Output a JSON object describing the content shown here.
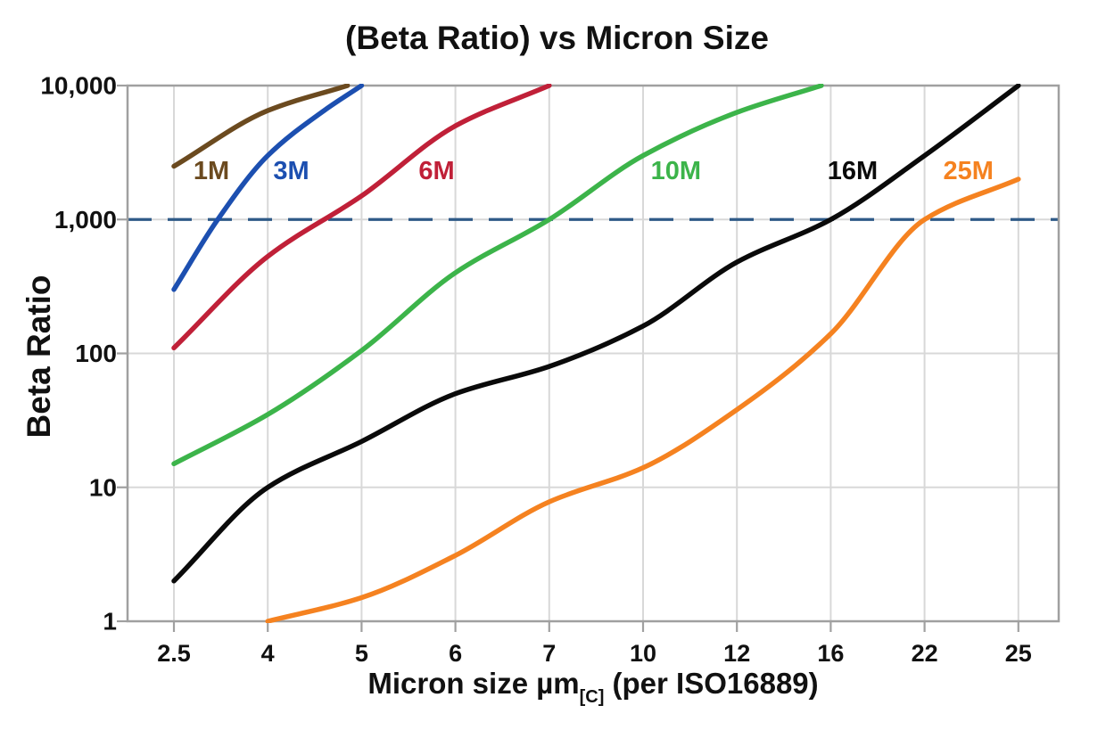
{
  "chart": {
    "title": "(Beta Ratio) vs Micron Size",
    "ylabel": "Beta Ratio",
    "xlabel": {
      "prefix": "Micron size µm",
      "subscript": "[C]",
      "suffix": " (per ISO16889)"
    }
  },
  "chart_data": {
    "type": "line",
    "title": "(Beta Ratio) vs Micron Size",
    "xlabel": "Micron size µm[C] (per ISO16889)",
    "ylabel": "Beta Ratio",
    "x_scale": "even-spaced-ticks",
    "y_scale": "log10",
    "ylim": [
      1,
      10000
    ],
    "grid": true,
    "legend_position": "inline-labels",
    "x_ticks": [
      2.5,
      4,
      5,
      6,
      7,
      10,
      12,
      16,
      22,
      25
    ],
    "x_tick_labels": [
      "2.5",
      "4",
      "5",
      "6",
      "7",
      "10",
      "12",
      "16",
      "22",
      "25"
    ],
    "y_tick_values": [
      1,
      10,
      100,
      1000,
      10000
    ],
    "y_tick_labels": [
      "1",
      "10",
      "100",
      "1,000",
      "10,000"
    ],
    "threshold": {
      "value": 1000,
      "style": "dashed",
      "color": "#2e5a87"
    },
    "frame_color": "#a0a0a0",
    "grid_color": "#d8d8d8",
    "tick_text_color": "#111111",
    "series": [
      {
        "name": "1M",
        "color": "#6b4a1f",
        "points": [
          [
            2.5,
            2500
          ],
          [
            4,
            6500
          ],
          [
            4.85,
            10000
          ]
        ],
        "label": {
          "text": "1M",
          "x": 3.1,
          "value": 2300
        }
      },
      {
        "name": "3M",
        "color": "#1c4fb0",
        "points": [
          [
            2.5,
            300
          ],
          [
            3.2,
            1000
          ],
          [
            4,
            3000
          ],
          [
            4.6,
            6500
          ],
          [
            5,
            10000
          ]
        ],
        "label": {
          "text": "3M",
          "x": 4.25,
          "value": 2300
        }
      },
      {
        "name": "6M",
        "color": "#c02038",
        "points": [
          [
            2.5,
            110
          ],
          [
            4,
            530
          ],
          [
            5,
            1500
          ],
          [
            6,
            5000
          ],
          [
            7,
            10000
          ]
        ],
        "label": {
          "text": "6M",
          "x": 5.8,
          "value": 2300
        }
      },
      {
        "name": "10M",
        "color": "#3cb44a",
        "points": [
          [
            2.5,
            15
          ],
          [
            4,
            35
          ],
          [
            5,
            105
          ],
          [
            6,
            400
          ],
          [
            7,
            1000
          ],
          [
            10,
            3000
          ],
          [
            12,
            6300
          ],
          [
            15.6,
            10000
          ]
        ],
        "label": {
          "text": "10M",
          "x": 10.7,
          "value": 2300
        }
      },
      {
        "name": "16M",
        "color": "#0a0a0a",
        "points": [
          [
            2.5,
            2
          ],
          [
            4,
            10
          ],
          [
            5,
            22
          ],
          [
            6,
            50
          ],
          [
            7,
            80
          ],
          [
            10,
            160
          ],
          [
            12,
            480
          ],
          [
            16,
            1000
          ],
          [
            22,
            3000
          ],
          [
            25,
            10000
          ]
        ],
        "label": {
          "text": "16M",
          "x": 17.4,
          "value": 2300
        }
      },
      {
        "name": "25M",
        "color": "#f58220",
        "points": [
          [
            4,
            1
          ],
          [
            5,
            1.5
          ],
          [
            6,
            3.1
          ],
          [
            7,
            7.8
          ],
          [
            10,
            14
          ],
          [
            12,
            38
          ],
          [
            16,
            140
          ],
          [
            22,
            1000
          ],
          [
            25,
            2000
          ]
        ],
        "label": {
          "text": "25M",
          "x": 23.4,
          "value": 2300
        }
      }
    ]
  }
}
